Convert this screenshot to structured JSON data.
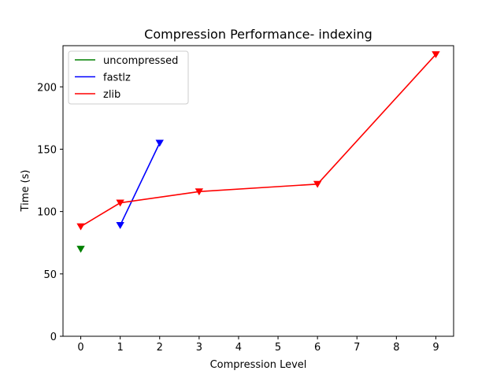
{
  "chart_data": {
    "type": "line",
    "title": "Compression Performance- indexing",
    "xlabel": "Compression Level",
    "ylabel": "Time (s)",
    "xlim": [
      -0.45,
      9.45
    ],
    "ylim": [
      0,
      233
    ],
    "xticks": [
      0,
      1,
      2,
      3,
      4,
      5,
      6,
      7,
      8,
      9
    ],
    "yticks": [
      0,
      50,
      100,
      150,
      200
    ],
    "grid": false,
    "legend_position": "top-left",
    "marker": "triangle-down",
    "series": [
      {
        "name": "uncompressed",
        "color": "#008000",
        "x": [
          0
        ],
        "y": [
          70
        ]
      },
      {
        "name": "fastlz",
        "color": "#0000ff",
        "x": [
          1,
          2
        ],
        "y": [
          89,
          155
        ]
      },
      {
        "name": "zlib",
        "color": "#ff0000",
        "x": [
          0,
          1,
          3,
          6,
          9
        ],
        "y": [
          88,
          107,
          116,
          122,
          226
        ]
      }
    ]
  }
}
